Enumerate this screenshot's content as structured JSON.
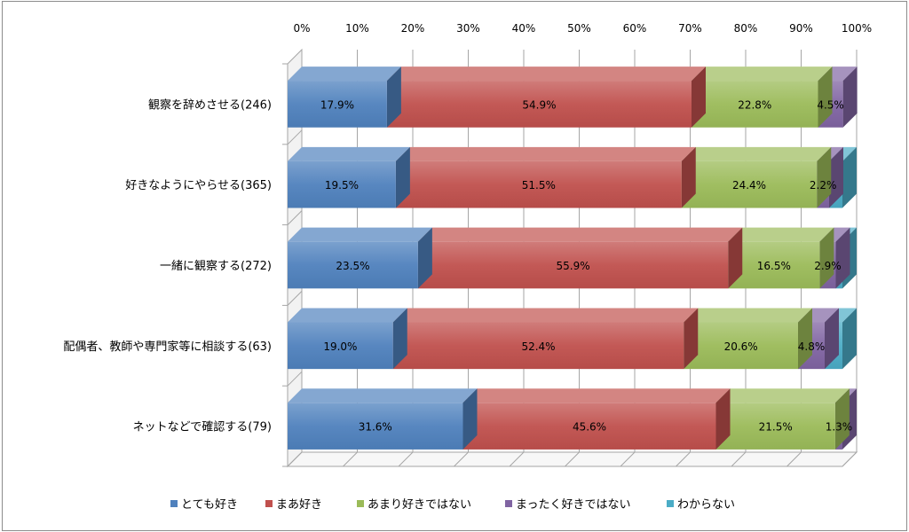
{
  "chart_data": {
    "type": "bar",
    "orientation": "horizontal",
    "stacked": "100%",
    "three_d": true,
    "categories": [
      "観察を辞めさせる(246)",
      "好きなようにやらせる(365)",
      "一緒に観察する(272)",
      "配偶者、教師や専門家等に相談する(63)",
      "ネットなどで確認する(79)"
    ],
    "series": [
      {
        "name": "とても好き",
        "color": "#4f81bd",
        "values": [
          17.9,
          19.5,
          23.5,
          19.0,
          31.6
        ]
      },
      {
        "name": "まあ好き",
        "color": "#c0504d",
        "values": [
          54.9,
          51.5,
          55.9,
          52.4,
          45.6
        ]
      },
      {
        "name": "あまり好きではない",
        "color": "#9bbb59",
        "values": [
          22.8,
          24.4,
          16.5,
          20.6,
          21.5
        ]
      },
      {
        "name": "まったく好きではない",
        "color": "#8064a2",
        "values": [
          4.5,
          2.2,
          2.9,
          4.8,
          1.3
        ]
      },
      {
        "name": "わからない",
        "color": "#4bacc6",
        "values": [
          0.0,
          2.4,
          1.2,
          3.2,
          0.0
        ]
      }
    ],
    "data_labels": [
      [
        "17.9%",
        "54.9%",
        "22.8%",
        "4.5%",
        ""
      ],
      [
        "19.5%",
        "51.5%",
        "24.4%",
        "2.2%",
        ""
      ],
      [
        "23.5%",
        "55.9%",
        "16.5%",
        "2.9%",
        ""
      ],
      [
        "19.0%",
        "52.4%",
        "20.6%",
        "4.8%",
        ""
      ],
      [
        "31.6%",
        "45.6%",
        "21.5%",
        "1.3%",
        ""
      ]
    ],
    "x_ticks": [
      "0%",
      "10%",
      "20%",
      "30%",
      "40%",
      "50%",
      "60%",
      "70%",
      "80%",
      "90%",
      "100%"
    ],
    "xlim": [
      0,
      100
    ],
    "grid": true,
    "legend": "bottom"
  }
}
